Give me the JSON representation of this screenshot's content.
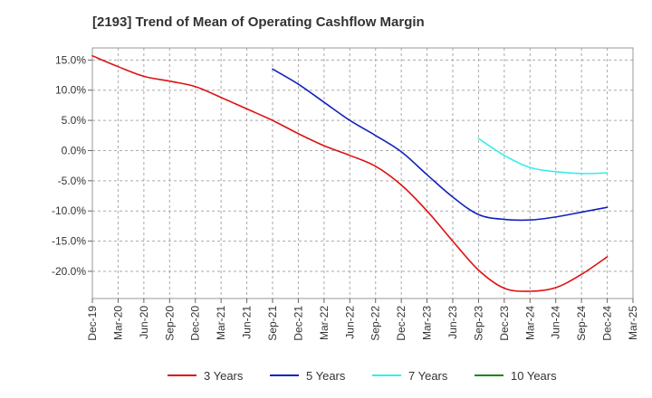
{
  "chart_data": {
    "type": "line",
    "title": "[2193]  Trend of Mean of Operating Cashflow Margin",
    "xlabel": "",
    "ylabel": "",
    "ylim": [
      -24.5,
      17.0
    ],
    "grid": true,
    "legend_position": "bottom",
    "x": [
      "Dec-19",
      "Mar-20",
      "Jun-20",
      "Sep-20",
      "Dec-20",
      "Mar-21",
      "Jun-21",
      "Sep-21",
      "Dec-21",
      "Mar-22",
      "Jun-22",
      "Sep-22",
      "Dec-22",
      "Mar-23",
      "Jun-23",
      "Sep-23",
      "Dec-23",
      "Mar-24",
      "Jun-24",
      "Sep-24",
      "Dec-24",
      "Mar-25"
    ],
    "y_ticks": [
      {
        "value": 15,
        "label": "15.0%"
      },
      {
        "value": 10,
        "label": "10.0%"
      },
      {
        "value": 5,
        "label": "5.0%"
      },
      {
        "value": 0,
        "label": "0.0%"
      },
      {
        "value": -5,
        "label": "-5.0%"
      },
      {
        "value": -10,
        "label": "-10.0%"
      },
      {
        "value": -15,
        "label": "-15.0%"
      },
      {
        "value": -20,
        "label": "-20.0%"
      }
    ],
    "series": [
      {
        "name": "3 Years",
        "color": "#dd1111",
        "values": [
          15.7,
          13.9,
          12.3,
          11.5,
          10.6,
          8.8,
          6.9,
          5.0,
          2.8,
          0.8,
          -0.8,
          -2.6,
          -5.7,
          -10.0,
          -15.0,
          -19.8,
          -22.8,
          -23.3,
          -22.7,
          -20.5,
          -17.6,
          null
        ]
      },
      {
        "name": "5 Years",
        "color": "#1122bb",
        "values": [
          null,
          null,
          null,
          null,
          null,
          null,
          null,
          13.5,
          11.0,
          8.0,
          5.0,
          2.5,
          -0.2,
          -4.0,
          -7.7,
          -10.6,
          -11.4,
          -11.5,
          -11.0,
          -10.2,
          -9.4,
          null
        ]
      },
      {
        "name": "7 Years",
        "color": "#33eeee",
        "values": [
          null,
          null,
          null,
          null,
          null,
          null,
          null,
          null,
          null,
          null,
          null,
          null,
          null,
          null,
          null,
          2.0,
          -0.8,
          -2.8,
          -3.5,
          -3.8,
          -3.7,
          null
        ]
      },
      {
        "name": "10 Years",
        "color": "#118811",
        "values": [
          null,
          null,
          null,
          null,
          null,
          null,
          null,
          null,
          null,
          null,
          null,
          null,
          null,
          null,
          null,
          null,
          null,
          null,
          null,
          null,
          null,
          null
        ]
      }
    ]
  }
}
